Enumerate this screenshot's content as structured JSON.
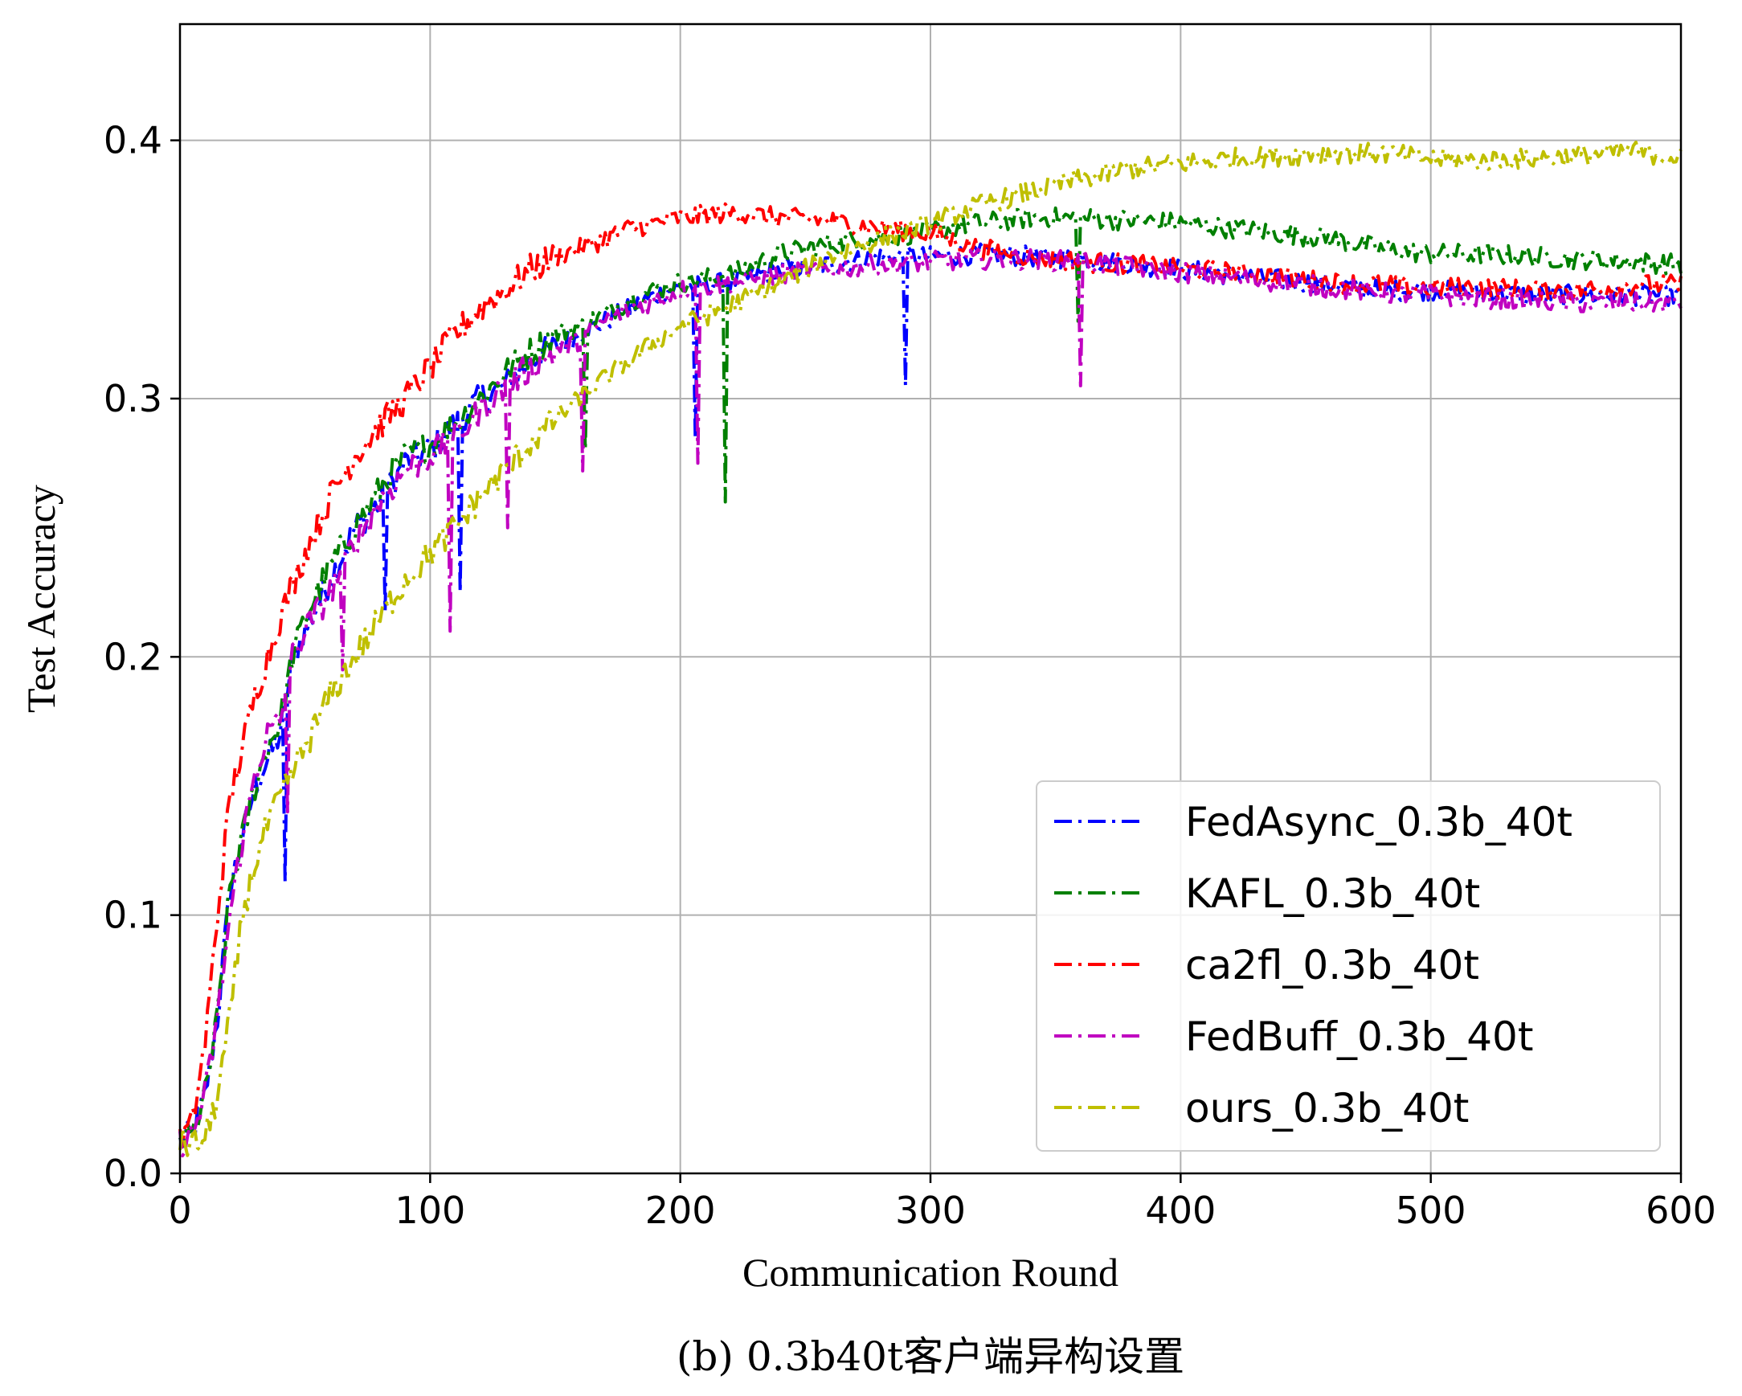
{
  "chart_data": {
    "type": "line",
    "xlabel": "Communication Round",
    "ylabel": "Test Accuracy",
    "caption": "(b) 0.3b40t客户端异构设置",
    "xlim": [
      0,
      600
    ],
    "ylim": [
      0,
      0.445
    ],
    "xticks": [
      0,
      100,
      200,
      300,
      400,
      500,
      600
    ],
    "yticks": [
      0.0,
      0.1,
      0.2,
      0.3,
      0.4
    ],
    "xtick_labels": [
      "0",
      "100",
      "200",
      "300",
      "400",
      "500",
      "600"
    ],
    "ytick_labels": [
      "0.0",
      "0.1",
      "0.2",
      "0.3",
      "0.4"
    ],
    "grid": true,
    "legend_position": "lower-right",
    "line_style": "dash-dot",
    "series": [
      {
        "name": "FedAsync_0.3b_40t",
        "color": "#0000ff",
        "x": [
          0,
          5,
          10,
          15,
          20,
          25,
          30,
          35,
          40,
          45,
          50,
          60,
          70,
          80,
          90,
          100,
          110,
          120,
          130,
          140,
          150,
          160,
          170,
          180,
          190,
          200,
          220,
          240,
          260,
          280,
          300,
          320,
          340,
          360,
          380,
          400,
          420,
          440,
          460,
          480,
          500,
          520,
          540,
          560,
          580,
          600
        ],
        "y": [
          0.012,
          0.015,
          0.03,
          0.06,
          0.11,
          0.13,
          0.15,
          0.16,
          0.17,
          0.2,
          0.21,
          0.23,
          0.25,
          0.26,
          0.275,
          0.28,
          0.29,
          0.3,
          0.305,
          0.315,
          0.32,
          0.325,
          0.33,
          0.335,
          0.34,
          0.343,
          0.345,
          0.35,
          0.352,
          0.355,
          0.355,
          0.356,
          0.355,
          0.354,
          0.352,
          0.35,
          0.348,
          0.346,
          0.344,
          0.342,
          0.342,
          0.341,
          0.34,
          0.34,
          0.34,
          0.34
        ],
        "dips": [
          [
            42,
            0.113
          ],
          [
            82,
            0.218
          ],
          [
            112,
            0.225
          ],
          [
            290,
            0.305
          ],
          [
            206,
            0.285
          ]
        ]
      },
      {
        "name": "KAFL_0.3b_40t",
        "color": "#008000",
        "x": [
          0,
          5,
          10,
          15,
          20,
          25,
          30,
          35,
          40,
          45,
          50,
          60,
          70,
          80,
          90,
          100,
          110,
          120,
          130,
          140,
          150,
          160,
          170,
          180,
          190,
          200,
          220,
          240,
          260,
          280,
          300,
          320,
          340,
          360,
          380,
          400,
          420,
          440,
          460,
          480,
          500,
          520,
          540,
          560,
          580,
          600
        ],
        "y": [
          0.012,
          0.015,
          0.03,
          0.06,
          0.11,
          0.13,
          0.15,
          0.165,
          0.175,
          0.2,
          0.215,
          0.235,
          0.25,
          0.265,
          0.278,
          0.282,
          0.29,
          0.3,
          0.31,
          0.318,
          0.325,
          0.328,
          0.333,
          0.338,
          0.342,
          0.345,
          0.348,
          0.356,
          0.36,
          0.362,
          0.365,
          0.368,
          0.37,
          0.37,
          0.369,
          0.368,
          0.366,
          0.364,
          0.362,
          0.358,
          0.356,
          0.356,
          0.355,
          0.354,
          0.353,
          0.352
        ],
        "dips": [
          [
            218,
            0.26
          ],
          [
            162,
            0.28
          ],
          [
            359,
            0.33
          ]
        ]
      },
      {
        "name": "ca2fl_0.3b_40t",
        "color": "#ff0000",
        "x": [
          0,
          5,
          10,
          15,
          20,
          25,
          30,
          35,
          40,
          45,
          50,
          60,
          70,
          80,
          90,
          100,
          110,
          120,
          130,
          140,
          150,
          160,
          170,
          180,
          190,
          200,
          210,
          220,
          240,
          260,
          280,
          300,
          320,
          340,
          360,
          380,
          400,
          420,
          440,
          460,
          480,
          500,
          520,
          540,
          560,
          580,
          600
        ],
        "y": [
          0.012,
          0.02,
          0.05,
          0.1,
          0.145,
          0.165,
          0.185,
          0.2,
          0.215,
          0.228,
          0.24,
          0.262,
          0.278,
          0.29,
          0.3,
          0.312,
          0.325,
          0.335,
          0.342,
          0.35,
          0.355,
          0.358,
          0.362,
          0.366,
          0.368,
          0.37,
          0.371,
          0.372,
          0.37,
          0.369,
          0.366,
          0.364,
          0.358,
          0.355,
          0.353,
          0.352,
          0.35,
          0.349,
          0.347,
          0.345,
          0.344,
          0.343,
          0.343,
          0.342,
          0.342,
          0.344,
          0.344
        ],
        "dips": []
      },
      {
        "name": "FedBuff_0.3b_40t",
        "color": "#c000c0",
        "x": [
          0,
          5,
          10,
          15,
          20,
          25,
          30,
          35,
          40,
          45,
          50,
          60,
          70,
          80,
          90,
          100,
          110,
          120,
          130,
          140,
          150,
          160,
          170,
          180,
          190,
          200,
          220,
          240,
          260,
          280,
          300,
          320,
          340,
          360,
          380,
          400,
          420,
          440,
          460,
          480,
          500,
          520,
          540,
          560,
          580,
          600
        ],
        "y": [
          0.012,
          0.015,
          0.03,
          0.06,
          0.1,
          0.13,
          0.155,
          0.17,
          0.175,
          0.2,
          0.21,
          0.225,
          0.245,
          0.26,
          0.272,
          0.278,
          0.285,
          0.295,
          0.305,
          0.312,
          0.318,
          0.323,
          0.33,
          0.335,
          0.338,
          0.342,
          0.345,
          0.348,
          0.35,
          0.352,
          0.353,
          0.354,
          0.354,
          0.353,
          0.351,
          0.349,
          0.347,
          0.345,
          0.343,
          0.341,
          0.34,
          0.339,
          0.338,
          0.337,
          0.337,
          0.337
        ],
        "dips": [
          [
            43,
            0.14
          ],
          [
            65,
            0.195
          ],
          [
            108,
            0.21
          ],
          [
            131,
            0.25
          ],
          [
            161,
            0.272
          ],
          [
            207,
            0.275
          ],
          [
            360,
            0.305
          ]
        ]
      },
      {
        "name": "ours_0.3b_40t",
        "color": "#bfbf00",
        "x": [
          0,
          5,
          10,
          15,
          20,
          25,
          30,
          35,
          40,
          45,
          50,
          60,
          70,
          80,
          90,
          100,
          110,
          120,
          130,
          140,
          150,
          160,
          170,
          180,
          190,
          200,
          220,
          240,
          260,
          280,
          300,
          320,
          340,
          360,
          380,
          400,
          420,
          440,
          460,
          480,
          500,
          520,
          540,
          560,
          580,
          600
        ],
        "y": [
          0.012,
          0.011,
          0.013,
          0.03,
          0.06,
          0.1,
          0.12,
          0.135,
          0.145,
          0.155,
          0.165,
          0.185,
          0.2,
          0.215,
          0.23,
          0.24,
          0.25,
          0.262,
          0.272,
          0.283,
          0.292,
          0.3,
          0.308,
          0.315,
          0.322,
          0.328,
          0.336,
          0.345,
          0.355,
          0.362,
          0.368,
          0.375,
          0.38,
          0.385,
          0.389,
          0.391,
          0.393,
          0.394,
          0.395,
          0.395,
          0.393,
          0.392,
          0.393,
          0.394,
          0.396,
          0.393
        ],
        "dips": []
      }
    ]
  }
}
